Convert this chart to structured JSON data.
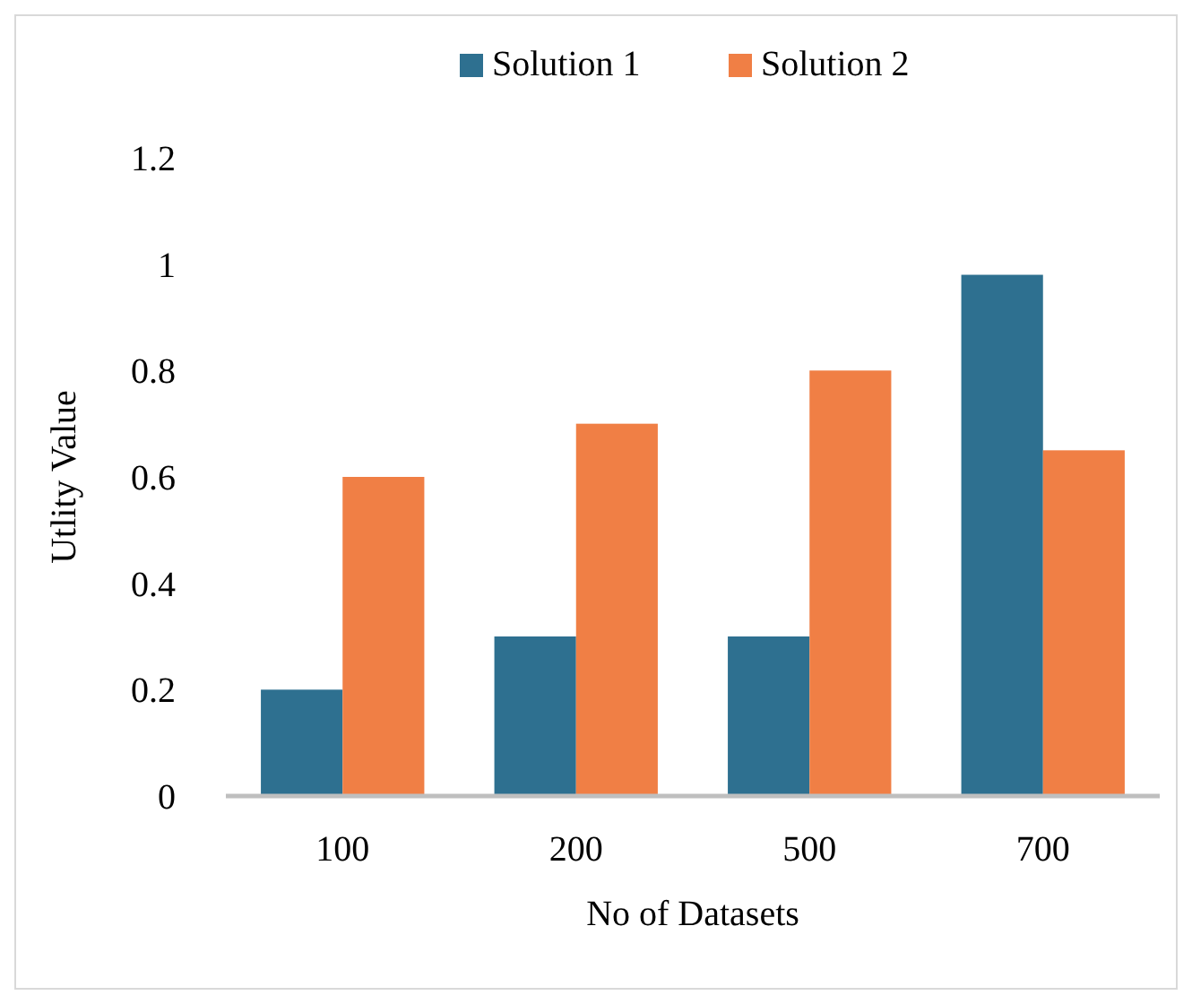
{
  "chart_data": {
    "type": "bar",
    "xlabel": "No of Datasets",
    "ylabel": "Utlity Value",
    "categories": [
      "100",
      "200",
      "500",
      "700"
    ],
    "series": [
      {
        "name": "Solution 1",
        "color": "#2e7090",
        "values": [
          0.2,
          0.3,
          0.3,
          0.98
        ]
      },
      {
        "name": "Solution 2",
        "color": "#f07f45",
        "values": [
          0.6,
          0.7,
          0.8,
          0.65
        ]
      }
    ],
    "ylim": [
      0,
      1.2
    ],
    "yticks": [
      {
        "value": 0,
        "label": "0"
      },
      {
        "value": 0.2,
        "label": "0.2"
      },
      {
        "value": 0.4,
        "label": "0.4"
      },
      {
        "value": 0.6,
        "label": "0.6"
      },
      {
        "value": 0.8,
        "label": "0.8"
      },
      {
        "value": 1,
        "label": "1"
      },
      {
        "value": 1.2,
        "label": "1.2"
      }
    ],
    "grid": false,
    "legend": "top"
  }
}
